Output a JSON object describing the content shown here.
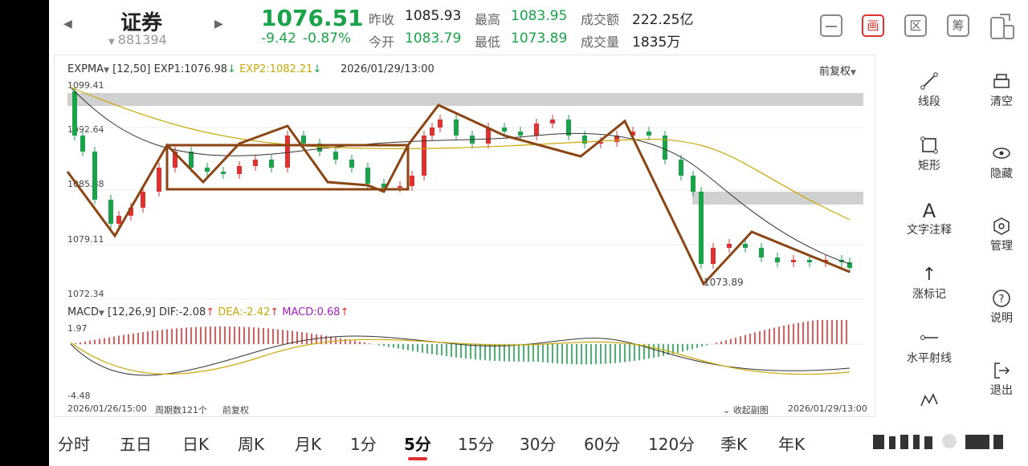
{
  "header": {
    "name": "证券",
    "code": "881394",
    "price": "1076.51",
    "change": "-9.42",
    "change_pct": "-0.87%",
    "quotes": [
      {
        "label": "昨收",
        "value": "1085.93"
      },
      {
        "label": "最高",
        "value": "1083.95"
      },
      {
        "label": "成交额",
        "value": "222.25亿"
      },
      {
        "label": "今开",
        "value": "1083.79"
      },
      {
        "label": "最低",
        "value": "1073.89"
      },
      {
        "label": "成交量",
        "value": "1835万"
      }
    ],
    "buttons": [
      "画",
      "区",
      "筹"
    ]
  },
  "chart_panel": {
    "indicator": "EXPMA",
    "params": "[12,50]",
    "exp1": "EXP1:1076.98",
    "exp2": "EXP2:1082.21",
    "datetime": "2026/01/29/13:00",
    "adjust": "前复权",
    "y_labels": [
      "1099.41",
      "1092.64",
      "1085.88",
      "1079.11",
      "1072.34"
    ],
    "low_label": "1073.89",
    "macd_indicator": "MACD",
    "macd_params": "[12,26,9]",
    "dif": "DIF:-2.08",
    "dea": "DEA:-2.42",
    "macd": "MACD:0.68",
    "macd_top": "1.97",
    "macd_bottom": "-4.48",
    "start_date": "2026/01/26/15:00",
    "period_count": "周期数121个",
    "adjust2": "前复权",
    "collapse": "收起副图",
    "end_date": "2026/01/29/13:00"
  },
  "tools": [
    {
      "icon": "segment-icon",
      "label": "线段"
    },
    {
      "icon": "rect-icon",
      "label": "矩形"
    },
    {
      "icon": "text-icon",
      "label": "文字注释"
    },
    {
      "icon": "arrow-up-icon",
      "label": "涨标记"
    },
    {
      "icon": "ray-icon",
      "label": "水平射线"
    }
  ],
  "side_actions": [
    {
      "icon": "clear-icon",
      "label": "清空"
    },
    {
      "icon": "eye-icon",
      "label": "隐藏"
    },
    {
      "icon": "manage-icon",
      "label": "管理"
    },
    {
      "icon": "help-icon",
      "label": "说明"
    },
    {
      "icon": "exit-icon",
      "label": "退出"
    }
  ],
  "tabs": [
    "分时",
    "五日",
    "日K",
    "周K",
    "月K",
    "1分",
    "5分",
    "15分",
    "30分",
    "60分",
    "120分",
    "季K",
    "年K"
  ],
  "active_tab": "5分",
  "colors": {
    "up": "#e03030",
    "down": "#1aa34a",
    "exp2": "#c9a80a",
    "drawing": "#8b4513"
  }
}
